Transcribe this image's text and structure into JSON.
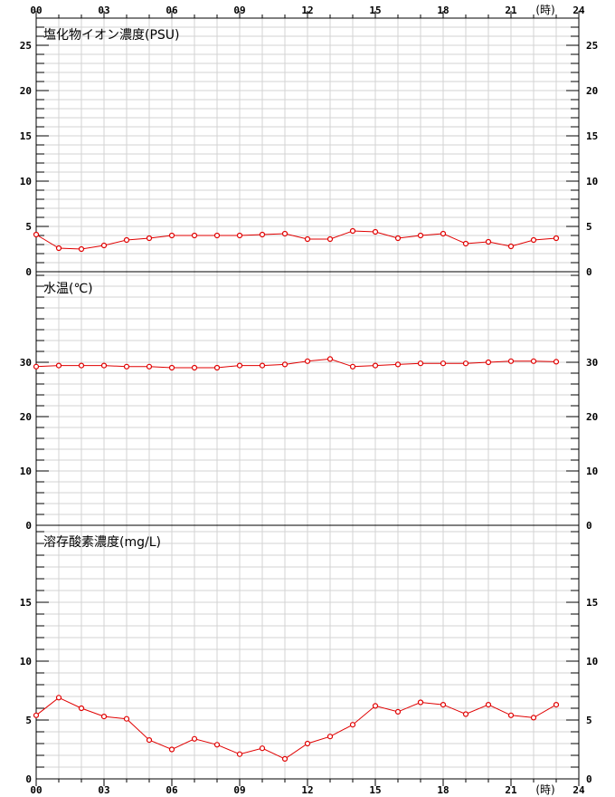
{
  "chart_data": [
    {
      "type": "line",
      "title": "塩化物イオン濃度(PSU)",
      "ylim": [
        0,
        28
      ],
      "yticks": [
        0,
        5,
        10,
        15,
        20,
        25
      ],
      "x": [
        0,
        1,
        2,
        3,
        4,
        5,
        6,
        7,
        8,
        9,
        10,
        11,
        12,
        13,
        14,
        15,
        16,
        17,
        18,
        19,
        20,
        21,
        22,
        23
      ],
      "series": [
        {
          "values": [
            4.1,
            2.6,
            2.5,
            2.9,
            3.5,
            3.7,
            4.0,
            4.0,
            4.0,
            4.0,
            4.1,
            4.2,
            3.6,
            3.6,
            4.5,
            4.4,
            3.7,
            4.0,
            4.2,
            3.1,
            3.3,
            2.8,
            3.5,
            3.7
          ]
        }
      ]
    },
    {
      "type": "line",
      "title": "水温(℃)",
      "ylim": [
        0,
        46.67
      ],
      "yticks": [
        0,
        10,
        20,
        30
      ],
      "x": [
        0,
        1,
        2,
        3,
        4,
        5,
        6,
        7,
        8,
        9,
        10,
        11,
        12,
        13,
        14,
        15,
        16,
        17,
        18,
        19,
        20,
        21,
        22,
        23
      ],
      "series": [
        {
          "values": [
            29.2,
            29.4,
            29.4,
            29.4,
            29.2,
            29.2,
            29.0,
            29.0,
            29.0,
            29.4,
            29.4,
            29.6,
            30.2,
            30.6,
            29.2,
            29.4,
            29.6,
            29.8,
            29.8,
            29.8,
            30.0,
            30.2,
            30.2,
            30.1
          ]
        }
      ]
    },
    {
      "type": "line",
      "title": "溶存酸素濃度(mg/L)",
      "ylim": [
        0,
        21.54
      ],
      "yticks": [
        0,
        5,
        10,
        15
      ],
      "x": [
        0,
        1,
        2,
        3,
        4,
        5,
        6,
        7,
        8,
        9,
        10,
        11,
        12,
        13,
        14,
        15,
        16,
        17,
        18,
        19,
        20,
        21,
        22,
        23
      ],
      "series": [
        {
          "values": [
            5.4,
            6.9,
            6.0,
            5.3,
            5.1,
            3.3,
            2.5,
            3.4,
            2.9,
            2.1,
            2.6,
            1.7,
            3.0,
            3.6,
            4.6,
            6.2,
            5.7,
            6.5,
            6.3,
            5.5,
            6.3,
            5.4,
            5.2,
            6.3
          ]
        }
      ]
    }
  ],
  "xaxis": {
    "min": 0,
    "max": 24,
    "tick_labels": [
      "00",
      "03",
      "06",
      "09",
      "12",
      "15",
      "18",
      "21",
      "24"
    ],
    "unit": "(時)"
  },
  "colors": {
    "series": "#e00000",
    "grid": "#d3d3d3",
    "frame": "#000000"
  }
}
